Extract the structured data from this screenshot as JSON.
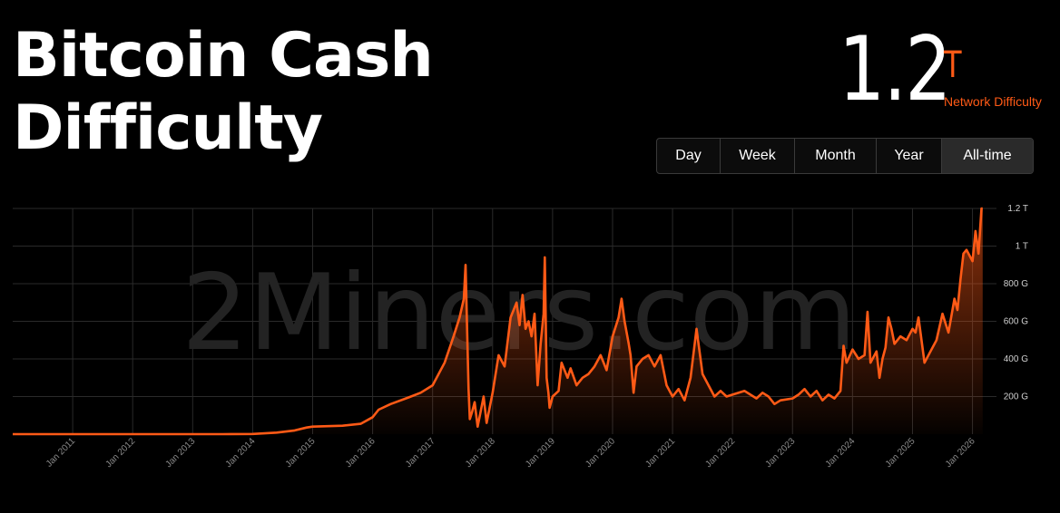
{
  "header": {
    "title_line1": "Bitcoin Cash",
    "title_line2": "Difficulty",
    "stat_value": "1.2",
    "stat_unit": "T",
    "stat_label": "Network Difficulty"
  },
  "tabs": [
    {
      "label": "Day",
      "active": false
    },
    {
      "label": "Week",
      "active": false
    },
    {
      "label": "Month",
      "active": false
    },
    {
      "label": "Year",
      "active": false
    },
    {
      "label": "All-time",
      "active": true
    }
  ],
  "watermark": "2Miners.com",
  "colors": {
    "accent": "#ff5a16",
    "background": "#000000",
    "grid": "#2a2a2a"
  },
  "chart_data": {
    "type": "area",
    "ylabel": "",
    "xlabel": "",
    "y_unit": "G",
    "ylim": [
      0,
      1200
    ],
    "xlim": [
      2010.0,
      2026.4
    ],
    "grid": true,
    "y_ticks": [
      {
        "value": 200,
        "label": "200 G"
      },
      {
        "value": 400,
        "label": "400 G"
      },
      {
        "value": 600,
        "label": "600 G"
      },
      {
        "value": 800,
        "label": "800 G"
      },
      {
        "value": 1000,
        "label": "1 T"
      },
      {
        "value": 1200,
        "label": "1.2 T"
      }
    ],
    "x_ticks": [
      {
        "value": 2011,
        "label": "Jan 2011"
      },
      {
        "value": 2012,
        "label": "Jan 2012"
      },
      {
        "value": 2013,
        "label": "Jan 2013"
      },
      {
        "value": 2014,
        "label": "Jan 2014"
      },
      {
        "value": 2015,
        "label": "Jan 2015"
      },
      {
        "value": 2016,
        "label": "Jan 2016"
      },
      {
        "value": 2017,
        "label": "Jan 2017"
      },
      {
        "value": 2018,
        "label": "Jan 2018"
      },
      {
        "value": 2019,
        "label": "Jan 2019"
      },
      {
        "value": 2020,
        "label": "Jan 2020"
      },
      {
        "value": 2021,
        "label": "Jan 2021"
      },
      {
        "value": 2022,
        "label": "Jan 2022"
      },
      {
        "value": 2023,
        "label": "Jan 2023"
      },
      {
        "value": 2024,
        "label": "Jan 2024"
      },
      {
        "value": 2025,
        "label": "Jan 2025"
      },
      {
        "value": 2026,
        "label": "Jan 2026"
      }
    ],
    "series": [
      {
        "color": "#ff5a16",
        "x": [
          2010.0,
          2013.5,
          2014.0,
          2014.4,
          2014.7,
          2014.9,
          2015.0,
          2015.5,
          2015.8,
          2016.0,
          2016.1,
          2016.3,
          2016.6,
          2016.8,
          2017.0,
          2017.2,
          2017.35,
          2017.45,
          2017.52,
          2017.55,
          2017.6,
          2017.62,
          2017.66,
          2017.7,
          2017.75,
          2017.8,
          2017.85,
          2017.9,
          2017.95,
          2018.0,
          2018.1,
          2018.2,
          2018.3,
          2018.4,
          2018.45,
          2018.5,
          2018.55,
          2018.6,
          2018.65,
          2018.7,
          2018.75,
          2018.8,
          2018.85,
          2018.87,
          2018.9,
          2018.93,
          2018.95,
          2019.0,
          2019.1,
          2019.15,
          2019.25,
          2019.3,
          2019.4,
          2019.5,
          2019.6,
          2019.7,
          2019.8,
          2019.9,
          2020.0,
          2020.1,
          2020.15,
          2020.2,
          2020.27,
          2020.3,
          2020.35,
          2020.4,
          2020.5,
          2020.6,
          2020.7,
          2020.8,
          2020.9,
          2021.0,
          2021.1,
          2021.2,
          2021.3,
          2021.4,
          2021.45,
          2021.5,
          2021.6,
          2021.7,
          2021.8,
          2021.9,
          2022.0,
          2022.2,
          2022.4,
          2022.5,
          2022.6,
          2022.7,
          2022.8,
          2023.0,
          2023.1,
          2023.2,
          2023.3,
          2023.4,
          2023.5,
          2023.6,
          2023.7,
          2023.8,
          2023.85,
          2023.9,
          2024.0,
          2024.1,
          2024.2,
          2024.25,
          2024.3,
          2024.4,
          2024.45,
          2024.5,
          2024.55,
          2024.6,
          2024.65,
          2024.7,
          2024.8,
          2024.9,
          2025.0,
          2025.05,
          2025.1,
          2025.2,
          2025.3,
          2025.4,
          2025.5,
          2025.6,
          2025.7,
          2025.75,
          2025.8,
          2025.85,
          2025.9,
          2026.0,
          2026.05,
          2026.1,
          2026.15,
          2026.17
        ],
        "values": [
          0,
          0,
          1,
          8,
          20,
          35,
          40,
          45,
          55,
          90,
          130,
          160,
          195,
          220,
          260,
          380,
          520,
          620,
          720,
          900,
          240,
          80,
          120,
          170,
          40,
          120,
          200,
          60,
          140,
          220,
          420,
          360,
          620,
          700,
          580,
          740,
          560,
          600,
          520,
          640,
          260,
          480,
          640,
          940,
          300,
          220,
          140,
          200,
          230,
          380,
          300,
          350,
          260,
          300,
          320,
          360,
          420,
          340,
          520,
          620,
          720,
          600,
          480,
          420,
          220,
          360,
          400,
          420,
          360,
          420,
          260,
          200,
          240,
          180,
          300,
          560,
          440,
          320,
          260,
          200,
          230,
          200,
          210,
          230,
          190,
          220,
          200,
          160,
          180,
          190,
          210,
          240,
          200,
          230,
          180,
          210,
          190,
          230,
          470,
          380,
          450,
          400,
          420,
          650,
          380,
          440,
          300,
          400,
          460,
          620,
          560,
          480,
          520,
          500,
          560,
          540,
          620,
          380,
          440,
          500,
          640,
          540,
          720,
          660,
          820,
          960,
          980,
          920,
          1080,
          960,
          1200,
          1200
        ]
      }
    ]
  }
}
